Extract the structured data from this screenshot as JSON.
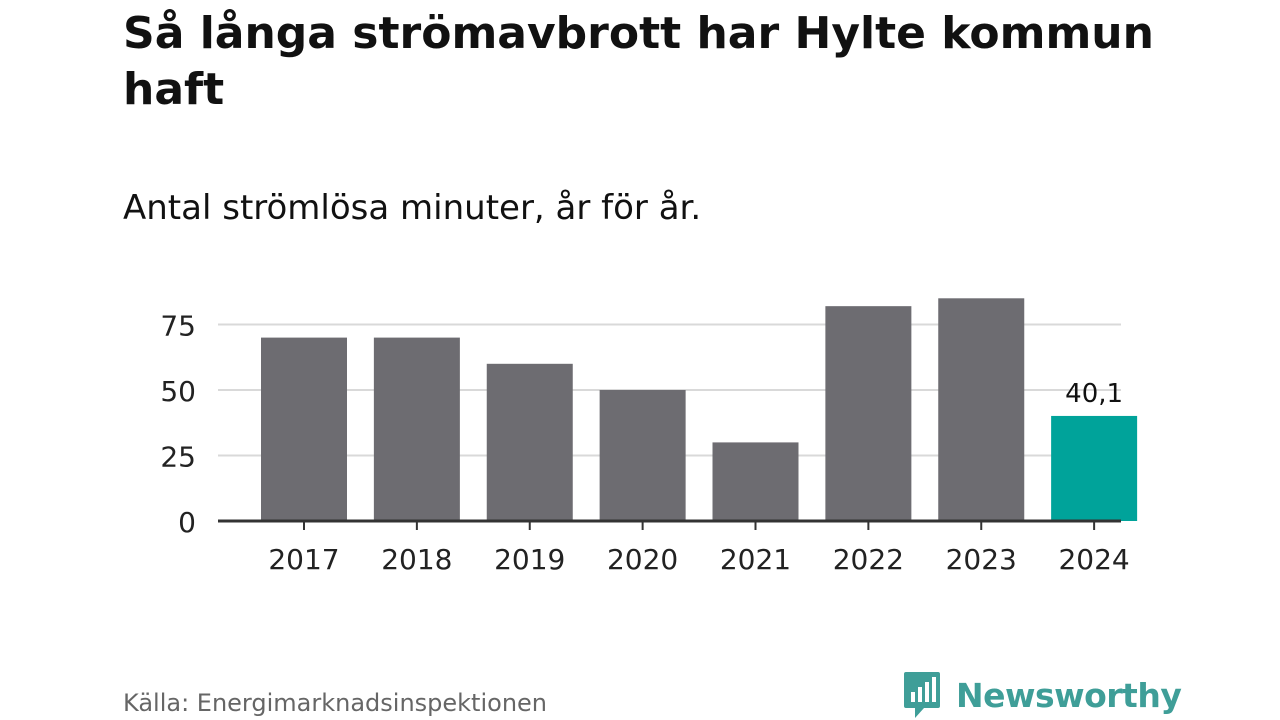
{
  "title": "Så långa strömavbrott har Hylte kommun haft",
  "subtitle": "Antal strömlösa minuter, år för år.",
  "source": "Källa: Energimarknadsinspektionen",
  "brand": "Newsworthy",
  "colors": {
    "bar": "#6d6c71",
    "highlight": "#00a39a",
    "grid": "#d9d9d9",
    "axis": "#333333",
    "brand": "#3f9e98"
  },
  "chart_data": {
    "type": "bar",
    "categories": [
      "2017",
      "2018",
      "2019",
      "2020",
      "2021",
      "2022",
      "2023",
      "2024"
    ],
    "values": [
      70,
      70,
      60,
      50,
      30,
      82,
      85,
      40.1
    ],
    "highlight_index": 7,
    "data_labels": [
      {
        "index": 7,
        "text": "40,1"
      }
    ],
    "yticks": [
      0,
      25,
      50,
      75
    ],
    "ylim": [
      0,
      90
    ],
    "grid": true,
    "xlabel": "",
    "ylabel": ""
  }
}
